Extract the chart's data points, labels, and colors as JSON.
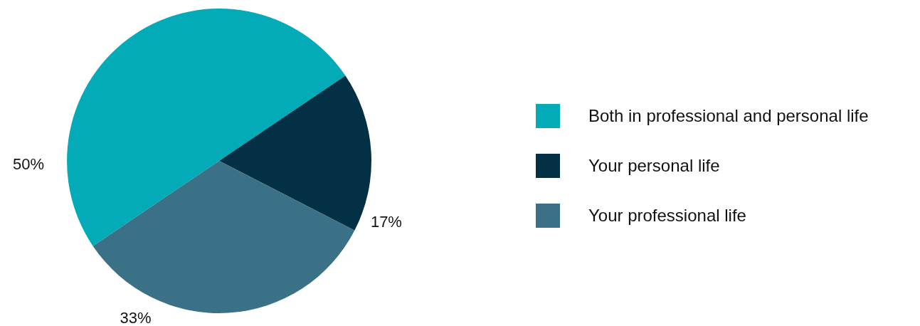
{
  "chart_data": {
    "type": "pie",
    "categories": [
      "Both in professional and personal life",
      "Your personal life",
      "Your professional life"
    ],
    "values": [
      50,
      17,
      33
    ],
    "colors": [
      "#03abb8",
      "#033045",
      "#3b7186"
    ],
    "value_labels": [
      "50%",
      "17%",
      "33%"
    ],
    "legend": "right"
  }
}
